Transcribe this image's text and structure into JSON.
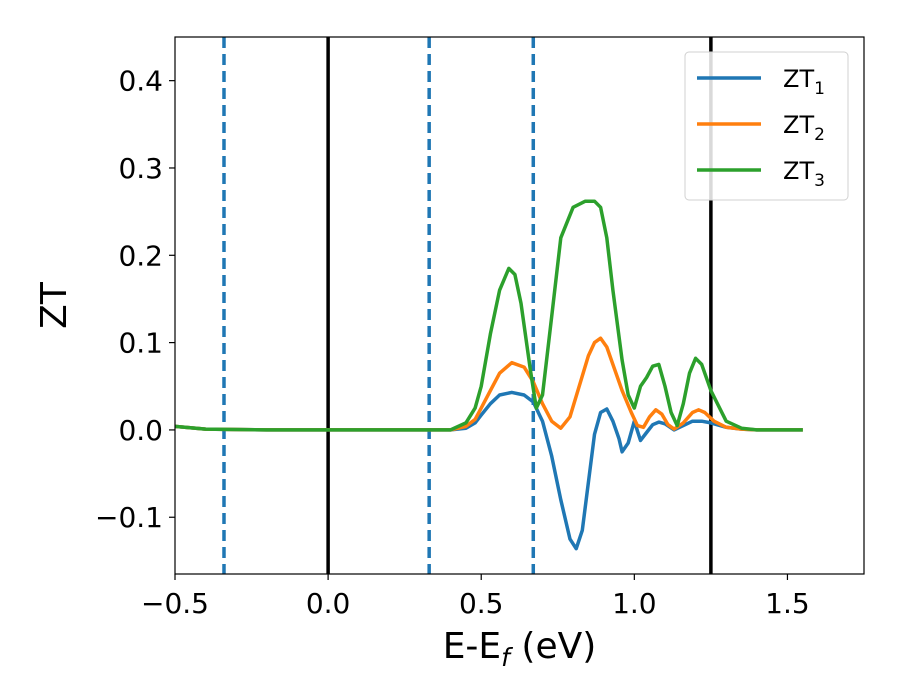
{
  "chart_data": {
    "type": "line",
    "title": "",
    "xlabel": {
      "base": "E-E",
      "sub": "f",
      "tail": " (eV)"
    },
    "ylabel": "ZT",
    "xlim": [
      -0.5,
      1.75
    ],
    "ylim": [
      -0.165,
      0.45
    ],
    "xticks": [
      -0.5,
      0.0,
      0.5,
      1.0,
      1.5
    ],
    "xtick_labels": [
      "−0.5",
      "0.0",
      "0.5",
      "1.0",
      "1.5"
    ],
    "yticks": [
      -0.1,
      0.0,
      0.1,
      0.2,
      0.3,
      0.4
    ],
    "ytick_labels": [
      "−0.1",
      "0.0",
      "0.1",
      "0.2",
      "0.3",
      "0.4"
    ],
    "grid": false,
    "legend_position": "top-right",
    "vlines_solid": [
      0.0,
      1.25
    ],
    "vlines_dashed": [
      -0.34,
      0.33,
      0.67
    ],
    "vline_solid_color": "#000000",
    "vline_dashed_color": "#1f77b4",
    "series": [
      {
        "name": "ZT",
        "sub": "1",
        "color": "#1f77b4",
        "x": [
          -0.5,
          -0.4,
          -0.2,
          0.0,
          0.2,
          0.4,
          0.45,
          0.48,
          0.5,
          0.53,
          0.56,
          0.6,
          0.64,
          0.67,
          0.7,
          0.73,
          0.76,
          0.79,
          0.81,
          0.83,
          0.85,
          0.87,
          0.89,
          0.91,
          0.93,
          0.95,
          0.96,
          0.98,
          1.0,
          1.02,
          1.04,
          1.06,
          1.08,
          1.1,
          1.13,
          1.16,
          1.19,
          1.22,
          1.25,
          1.3,
          1.35,
          1.4,
          1.5,
          1.55
        ],
        "y": [
          0.004,
          0.001,
          0.0,
          0.0,
          0.0,
          0.0,
          0.002,
          0.008,
          0.017,
          0.03,
          0.04,
          0.043,
          0.04,
          0.032,
          0.01,
          -0.03,
          -0.08,
          -0.125,
          -0.136,
          -0.115,
          -0.06,
          -0.005,
          0.02,
          0.024,
          0.01,
          -0.01,
          -0.025,
          -0.015,
          0.01,
          -0.012,
          -0.003,
          0.006,
          0.009,
          0.007,
          0.0,
          0.005,
          0.01,
          0.01,
          0.008,
          0.003,
          0.001,
          0.0,
          0.0,
          0.0
        ]
      },
      {
        "name": "ZT",
        "sub": "2",
        "color": "#ff7f0e",
        "x": [
          -0.5,
          -0.4,
          -0.2,
          0.0,
          0.2,
          0.4,
          0.45,
          0.48,
          0.5,
          0.53,
          0.56,
          0.6,
          0.64,
          0.67,
          0.7,
          0.73,
          0.76,
          0.79,
          0.82,
          0.85,
          0.87,
          0.89,
          0.91,
          0.93,
          0.96,
          0.99,
          1.01,
          1.03,
          1.05,
          1.07,
          1.09,
          1.11,
          1.13,
          1.16,
          1.19,
          1.21,
          1.23,
          1.26,
          1.3,
          1.35,
          1.4,
          1.5,
          1.55
        ],
        "y": [
          0.004,
          0.001,
          0.0,
          0.0,
          0.0,
          0.0,
          0.004,
          0.012,
          0.025,
          0.045,
          0.065,
          0.077,
          0.072,
          0.055,
          0.03,
          0.01,
          0.002,
          0.015,
          0.05,
          0.085,
          0.1,
          0.105,
          0.095,
          0.075,
          0.045,
          0.02,
          0.005,
          0.003,
          0.015,
          0.023,
          0.018,
          0.006,
          0.001,
          0.008,
          0.02,
          0.023,
          0.02,
          0.01,
          0.003,
          0.001,
          0.0,
          0.0,
          0.0
        ]
      },
      {
        "name": "ZT",
        "sub": "3",
        "color": "#2ca02c",
        "x": [
          -0.5,
          -0.4,
          -0.2,
          0.0,
          0.2,
          0.4,
          0.45,
          0.48,
          0.5,
          0.53,
          0.56,
          0.59,
          0.61,
          0.63,
          0.66,
          0.68,
          0.7,
          0.73,
          0.76,
          0.8,
          0.84,
          0.87,
          0.89,
          0.91,
          0.93,
          0.96,
          0.98,
          1.0,
          1.02,
          1.04,
          1.06,
          1.08,
          1.1,
          1.12,
          1.14,
          1.16,
          1.18,
          1.2,
          1.22,
          1.25,
          1.3,
          1.35,
          1.4,
          1.5,
          1.55
        ],
        "y": [
          0.004,
          0.001,
          0.0,
          0.0,
          0.0,
          0.0,
          0.008,
          0.025,
          0.05,
          0.11,
          0.16,
          0.185,
          0.178,
          0.145,
          0.07,
          0.025,
          0.04,
          0.13,
          0.22,
          0.255,
          0.262,
          0.262,
          0.255,
          0.22,
          0.16,
          0.08,
          0.04,
          0.025,
          0.05,
          0.06,
          0.073,
          0.075,
          0.05,
          0.02,
          0.005,
          0.03,
          0.065,
          0.082,
          0.075,
          0.045,
          0.01,
          0.002,
          0.0,
          0.0,
          0.0
        ]
      }
    ]
  }
}
